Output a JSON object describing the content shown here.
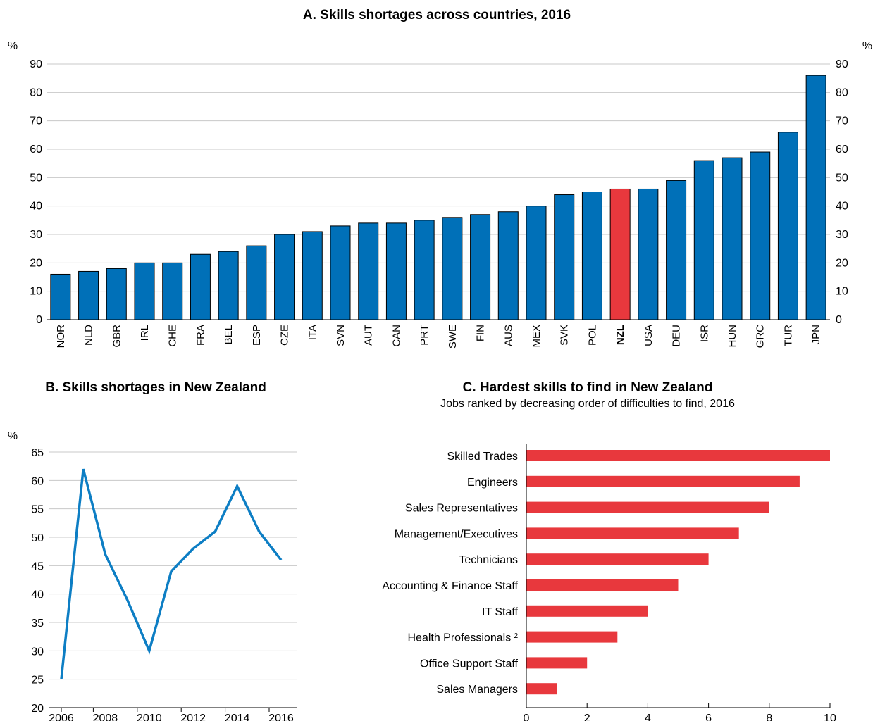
{
  "chart_data": [
    {
      "type": "bar",
      "title": "A. Skills shortages across countries, 2016",
      "ylabel_left": "%",
      "ylabel_right": "%",
      "ylim": [
        0,
        90
      ],
      "yticks": [
        0,
        10,
        20,
        30,
        40,
        50,
        60,
        70,
        80,
        90
      ],
      "categories": [
        "NOR",
        "NLD",
        "GBR",
        "IRL",
        "CHE",
        "FRA",
        "BEL",
        "ESP",
        "CZE",
        "ITA",
        "SVN",
        "AUT",
        "CAN",
        "PRT",
        "SWE",
        "FIN",
        "AUS",
        "MEX",
        "SVK",
        "POL",
        "NZL",
        "USA",
        "DEU",
        "ISR",
        "HUN",
        "GRC",
        "TUR",
        "JPN"
      ],
      "values": [
        16,
        17,
        18,
        20,
        20,
        23,
        24,
        26,
        30,
        31,
        33,
        34,
        34,
        35,
        36,
        37,
        38,
        40,
        44,
        45,
        46,
        46,
        49,
        56,
        57,
        59,
        66,
        86
      ],
      "highlight": "NZL",
      "colors": {
        "bar": "#0070b8",
        "highlight": "#e8383d"
      },
      "grid": true
    },
    {
      "type": "line",
      "title": "B. Skills shortages in New Zealand",
      "ylabel": "%",
      "ylim": [
        20,
        65
      ],
      "yticks": [
        20,
        25,
        30,
        35,
        40,
        45,
        50,
        55,
        60,
        65
      ],
      "xlim": [
        2006,
        2016
      ],
      "xticks": [
        2006,
        2008,
        2010,
        2012,
        2014,
        2016
      ],
      "x": [
        2006,
        2007,
        2008,
        2009,
        2010,
        2011,
        2012,
        2013,
        2014,
        2015,
        2016
      ],
      "values": [
        25,
        62,
        47,
        39,
        30,
        44,
        48,
        51,
        59,
        51,
        46
      ],
      "colors": {
        "line": "#0d7ec4"
      },
      "grid": true
    },
    {
      "type": "bar",
      "orientation": "horizontal",
      "title": "C. Hardest skills to find in New Zealand",
      "subtitle": "Jobs ranked by decreasing order of difficulties to find, 2016",
      "xlim": [
        0,
        10
      ],
      "xticks": [
        0,
        2,
        4,
        6,
        8,
        10
      ],
      "categories": [
        "Skilled Trades",
        "Engineers",
        "Sales Representatives",
        "Management/Executives",
        "Technicians",
        "Accounting & Finance Staff",
        "IT Staff",
        "Health Professionals ²",
        "Office Support Staff",
        "Sales Managers"
      ],
      "values": [
        10,
        9,
        8,
        7,
        6,
        5,
        4,
        3,
        2,
        1
      ],
      "colors": {
        "bar": "#e8383d"
      }
    }
  ]
}
